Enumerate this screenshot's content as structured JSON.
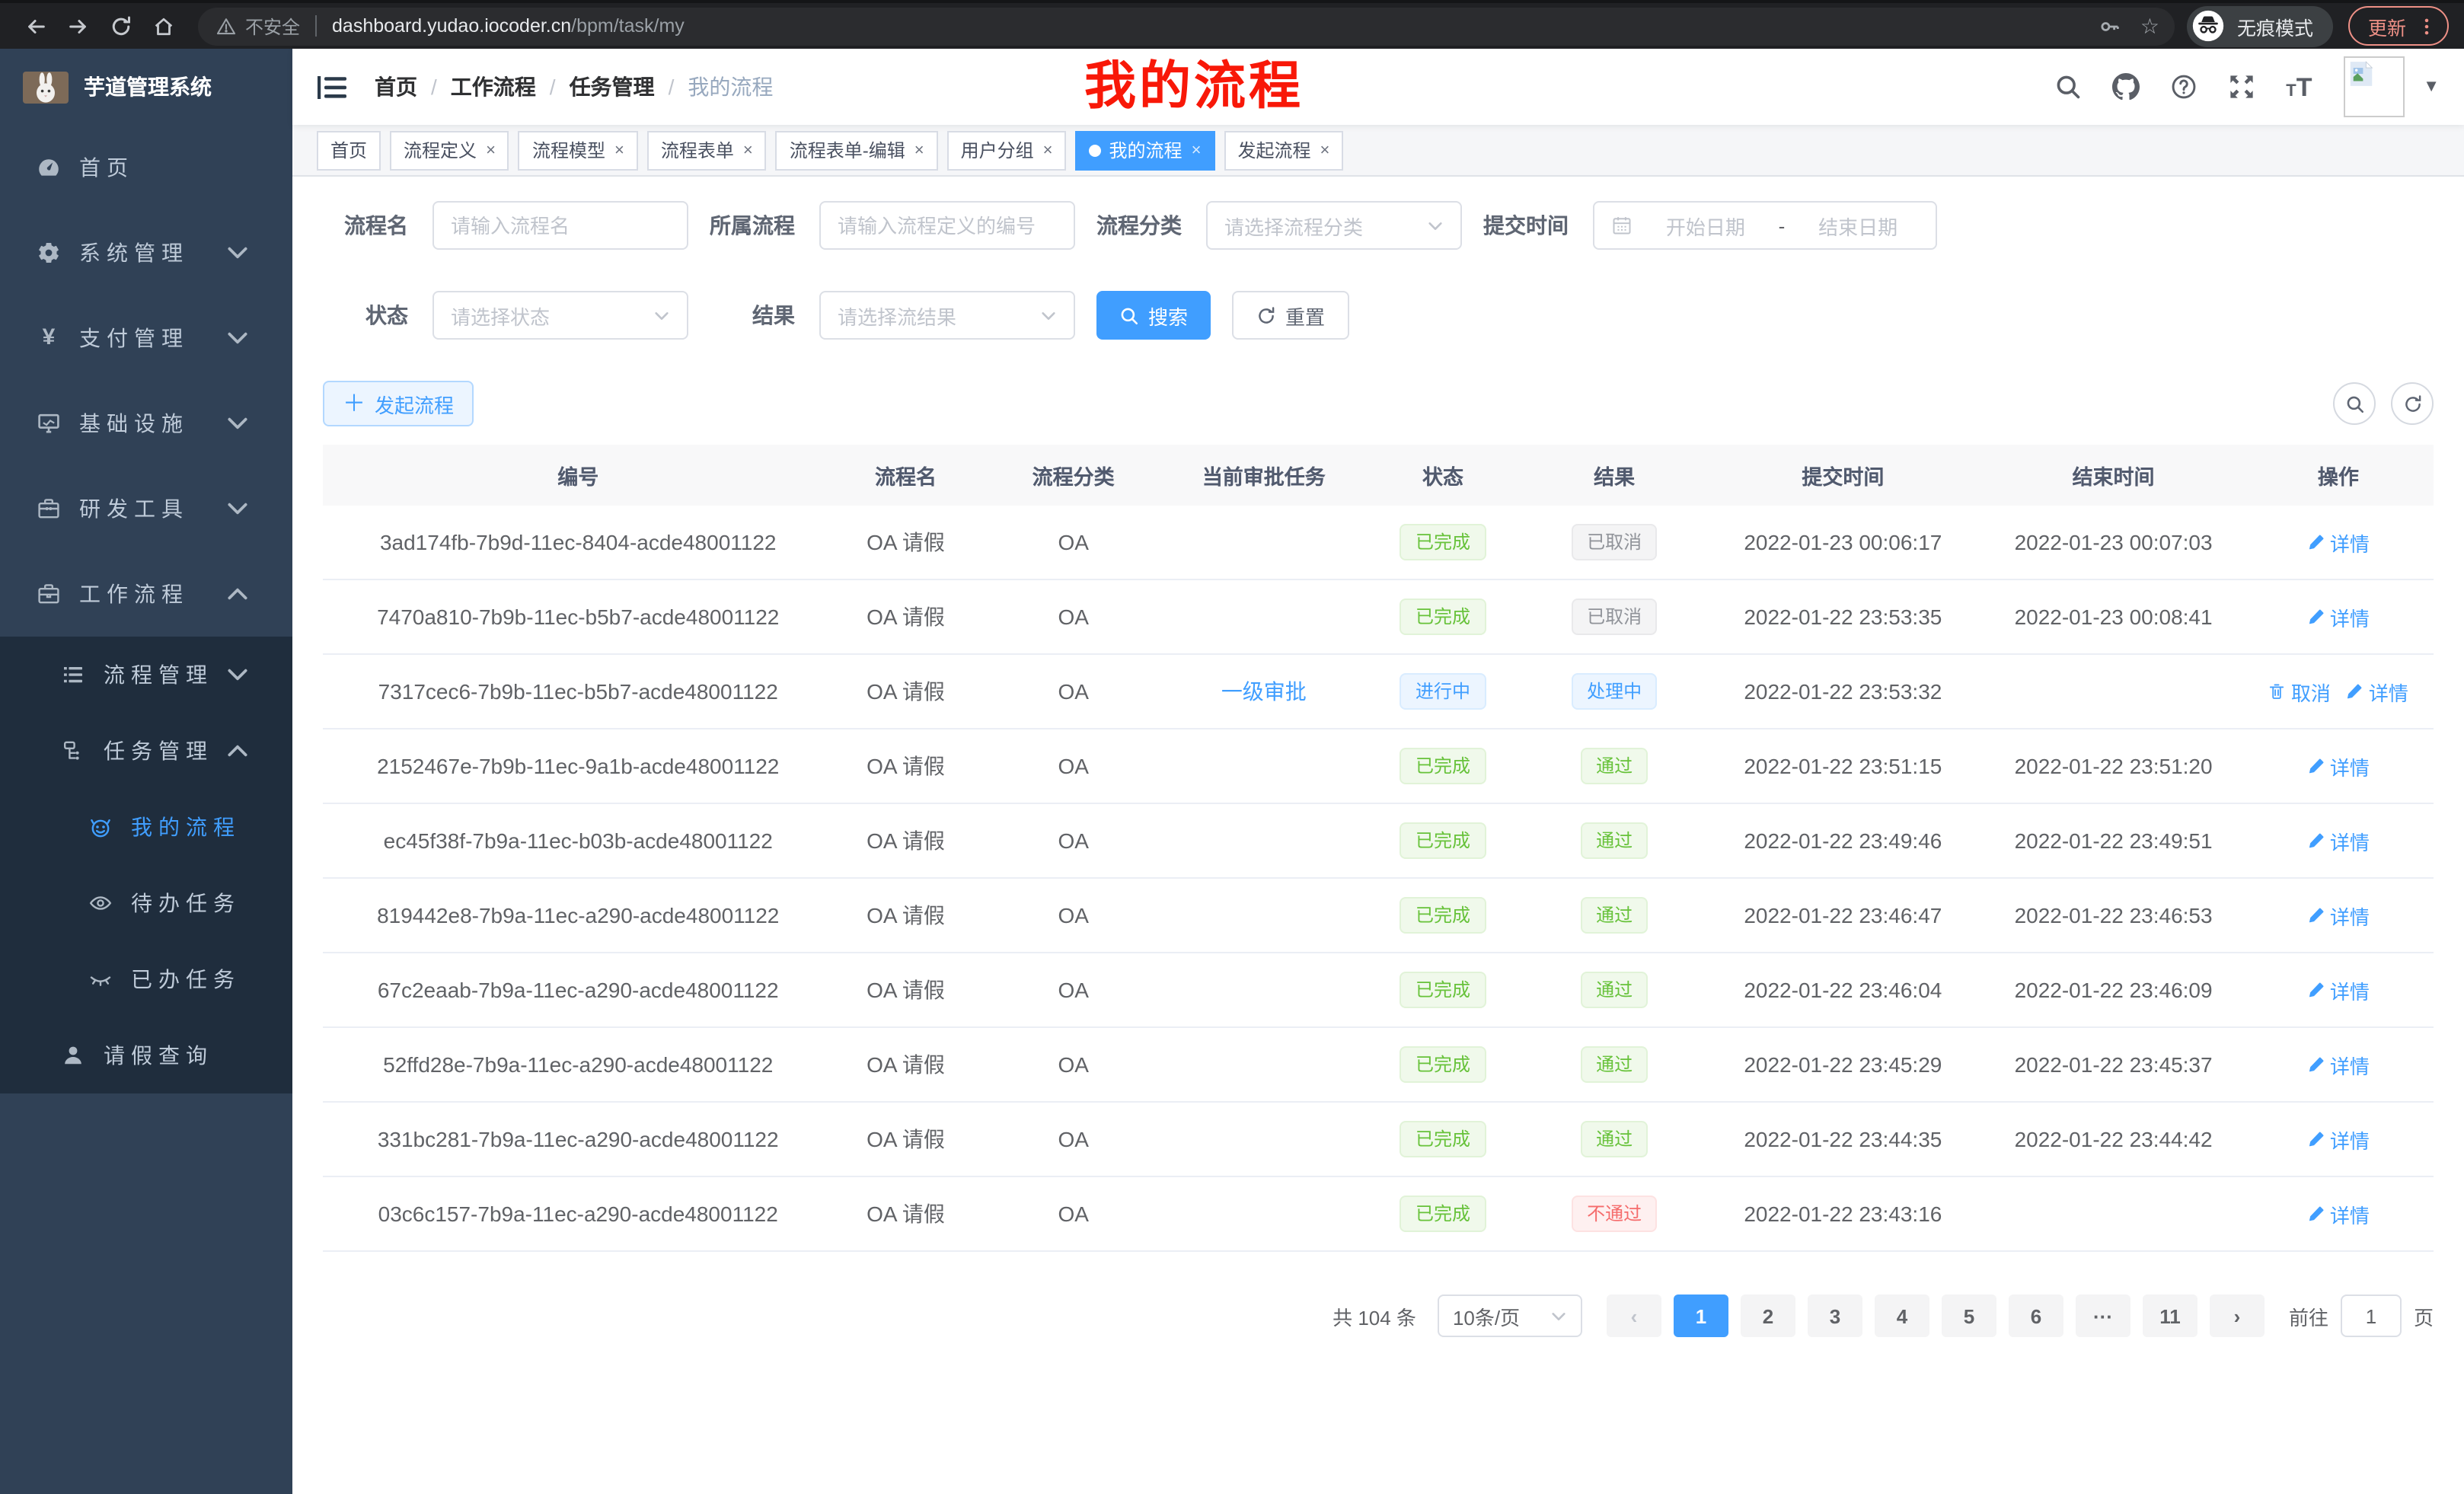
{
  "browser": {
    "security_label": "不安全",
    "url_host": "dashboard.yudao.iocoder.cn",
    "url_path": "/bpm/task/my",
    "incognito_label": "无痕模式",
    "update_label": "更新",
    "nav_icons": [
      "arrow-left-icon",
      "arrow-right-icon",
      "reload-icon",
      "home-icon"
    ]
  },
  "sidebar": {
    "app_title": "芋道管理系统",
    "menu": [
      {
        "label": "首页",
        "icon": "dashboard-icon",
        "level": 1
      },
      {
        "label": "系统管理",
        "icon": "gear-icon",
        "level": 1,
        "chevron": "down"
      },
      {
        "label": "支付管理",
        "icon": "yen-icon",
        "level": 1,
        "chevron": "down"
      },
      {
        "label": "基础设施",
        "icon": "monitor-icon",
        "level": 1,
        "chevron": "down"
      },
      {
        "label": "研发工具",
        "icon": "toolbox-icon",
        "level": 1,
        "chevron": "down"
      },
      {
        "label": "工作流程",
        "icon": "briefcase-icon",
        "level": 1,
        "chevron": "up"
      },
      {
        "label": "流程管理",
        "icon": "list-icon",
        "level": 2,
        "chevron": "down",
        "dark": true
      },
      {
        "label": "任务管理",
        "icon": "flow-icon",
        "level": 2,
        "chevron": "up",
        "dark": true
      },
      {
        "label": "我的流程",
        "icon": "robot-icon",
        "level": 3,
        "dark": true,
        "active": true
      },
      {
        "label": "待办任务",
        "icon": "eye-icon",
        "level": 3,
        "dark": true
      },
      {
        "label": "已办任务",
        "icon": "eye-closed-icon",
        "level": 3,
        "dark": true
      },
      {
        "label": "请假查询",
        "icon": "user-icon",
        "level": 2,
        "dark": true
      }
    ]
  },
  "navbar": {
    "breadcrumb": [
      "首页",
      "工作流程",
      "任务管理",
      "我的流程"
    ],
    "annotation": "我的流程",
    "action_icons": [
      "search-icon",
      "github-icon",
      "help-icon",
      "fullscreen-icon",
      "font-size-icon"
    ]
  },
  "tabs": [
    {
      "label": "首页",
      "closable": false,
      "active": false
    },
    {
      "label": "流程定义",
      "closable": true,
      "active": false
    },
    {
      "label": "流程模型",
      "closable": true,
      "active": false
    },
    {
      "label": "流程表单",
      "closable": true,
      "active": false
    },
    {
      "label": "流程表单-编辑",
      "closable": true,
      "active": false
    },
    {
      "label": "用户分组",
      "closable": true,
      "active": false
    },
    {
      "label": "我的流程",
      "closable": true,
      "active": true
    },
    {
      "label": "发起流程",
      "closable": true,
      "active": false
    }
  ],
  "filters": {
    "name_label": "流程名",
    "name_placeholder": "请输入流程名",
    "definition_label": "所属流程",
    "definition_placeholder": "请输入流程定义的编号",
    "category_label": "流程分类",
    "category_placeholder": "请选择流程分类",
    "time_label": "提交时间",
    "start_placeholder": "开始日期",
    "range_separator": "-",
    "end_placeholder": "结束日期",
    "status_label": "状态",
    "status_placeholder": "请选择状态",
    "result_label": "结果",
    "result_placeholder": "请选择流结果",
    "search_label": "搜索",
    "reset_label": "重置"
  },
  "toolbar": {
    "create_label": "发起流程"
  },
  "table": {
    "headers": [
      "编号",
      "流程名",
      "流程分类",
      "当前审批任务",
      "状态",
      "结果",
      "提交时间",
      "结束时间",
      "操作"
    ],
    "rows": [
      {
        "id": "3ad174fb-7b9d-11ec-8404-acde48001122",
        "name": "OA 请假",
        "category": "OA",
        "task": "",
        "status": {
          "text": "已完成",
          "type": "success"
        },
        "result": {
          "text": "已取消",
          "type": "info"
        },
        "submit_time": "2022-01-23 00:06:17",
        "end_time": "2022-01-23 00:07:03",
        "actions": [
          {
            "label": "详情",
            "icon": "edit-icon"
          }
        ]
      },
      {
        "id": "7470a810-7b9b-11ec-b5b7-acde48001122",
        "name": "OA 请假",
        "category": "OA",
        "task": "",
        "status": {
          "text": "已完成",
          "type": "success"
        },
        "result": {
          "text": "已取消",
          "type": "info"
        },
        "submit_time": "2022-01-22 23:53:35",
        "end_time": "2022-01-23 00:08:41",
        "actions": [
          {
            "label": "详情",
            "icon": "edit-icon"
          }
        ]
      },
      {
        "id": "7317cec6-7b9b-11ec-b5b7-acde48001122",
        "name": "OA 请假",
        "category": "OA",
        "task": "一级审批",
        "status": {
          "text": "进行中",
          "type": "primary"
        },
        "result": {
          "text": "处理中",
          "type": "primary"
        },
        "submit_time": "2022-01-22 23:53:32",
        "end_time": "",
        "actions": [
          {
            "label": "取消",
            "icon": "trash-icon"
          },
          {
            "label": "详情",
            "icon": "edit-icon"
          }
        ]
      },
      {
        "id": "2152467e-7b9b-11ec-9a1b-acde48001122",
        "name": "OA 请假",
        "category": "OA",
        "task": "",
        "status": {
          "text": "已完成",
          "type": "success"
        },
        "result": {
          "text": "通过",
          "type": "success"
        },
        "submit_time": "2022-01-22 23:51:15",
        "end_time": "2022-01-22 23:51:20",
        "actions": [
          {
            "label": "详情",
            "icon": "edit-icon"
          }
        ]
      },
      {
        "id": "ec45f38f-7b9a-11ec-b03b-acde48001122",
        "name": "OA 请假",
        "category": "OA",
        "task": "",
        "status": {
          "text": "已完成",
          "type": "success"
        },
        "result": {
          "text": "通过",
          "type": "success"
        },
        "submit_time": "2022-01-22 23:49:46",
        "end_time": "2022-01-22 23:49:51",
        "actions": [
          {
            "label": "详情",
            "icon": "edit-icon"
          }
        ]
      },
      {
        "id": "819442e8-7b9a-11ec-a290-acde48001122",
        "name": "OA 请假",
        "category": "OA",
        "task": "",
        "status": {
          "text": "已完成",
          "type": "success"
        },
        "result": {
          "text": "通过",
          "type": "success"
        },
        "submit_time": "2022-01-22 23:46:47",
        "end_time": "2022-01-22 23:46:53",
        "actions": [
          {
            "label": "详情",
            "icon": "edit-icon"
          }
        ]
      },
      {
        "id": "67c2eaab-7b9a-11ec-a290-acde48001122",
        "name": "OA 请假",
        "category": "OA",
        "task": "",
        "status": {
          "text": "已完成",
          "type": "success"
        },
        "result": {
          "text": "通过",
          "type": "success"
        },
        "submit_time": "2022-01-22 23:46:04",
        "end_time": "2022-01-22 23:46:09",
        "actions": [
          {
            "label": "详情",
            "icon": "edit-icon"
          }
        ]
      },
      {
        "id": "52ffd28e-7b9a-11ec-a290-acde48001122",
        "name": "OA 请假",
        "category": "OA",
        "task": "",
        "status": {
          "text": "已完成",
          "type": "success"
        },
        "result": {
          "text": "通过",
          "type": "success"
        },
        "submit_time": "2022-01-22 23:45:29",
        "end_time": "2022-01-22 23:45:37",
        "actions": [
          {
            "label": "详情",
            "icon": "edit-icon"
          }
        ]
      },
      {
        "id": "331bc281-7b9a-11ec-a290-acde48001122",
        "name": "OA 请假",
        "category": "OA",
        "task": "",
        "status": {
          "text": "已完成",
          "type": "success"
        },
        "result": {
          "text": "通过",
          "type": "success"
        },
        "submit_time": "2022-01-22 23:44:35",
        "end_time": "2022-01-22 23:44:42",
        "actions": [
          {
            "label": "详情",
            "icon": "edit-icon"
          }
        ]
      },
      {
        "id": "03c6c157-7b9a-11ec-a290-acde48001122",
        "name": "OA 请假",
        "category": "OA",
        "task": "",
        "status": {
          "text": "已完成",
          "type": "success"
        },
        "result": {
          "text": "不通过",
          "type": "danger"
        },
        "submit_time": "2022-01-22 23:43:16",
        "end_time": "",
        "actions": [
          {
            "label": "详情",
            "icon": "edit-icon"
          }
        ]
      }
    ]
  },
  "pagination": {
    "total_label": "共 104 条",
    "page_size": "10条/页",
    "pages": [
      "1",
      "2",
      "3",
      "4",
      "5",
      "6",
      "···",
      "11"
    ],
    "active_page": "1",
    "goto_label": "前往",
    "goto_value": "1",
    "page_unit": "页"
  }
}
